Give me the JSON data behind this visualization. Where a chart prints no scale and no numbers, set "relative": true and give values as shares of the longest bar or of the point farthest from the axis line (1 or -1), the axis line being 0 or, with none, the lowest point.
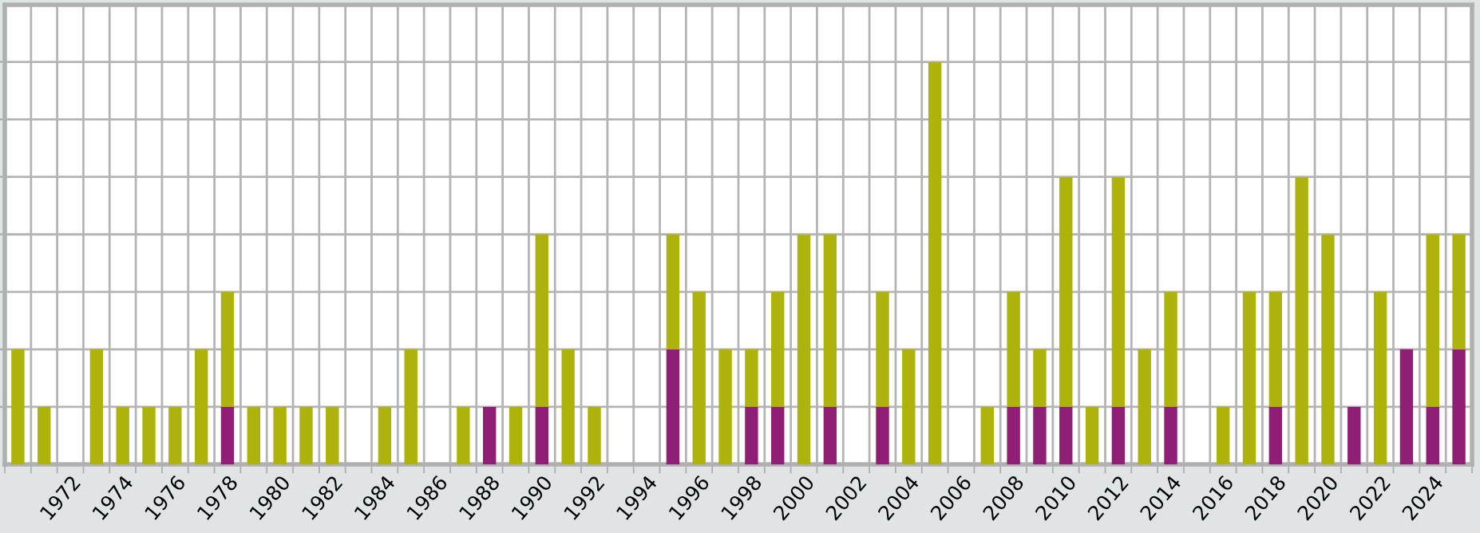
{
  "chart_data": {
    "type": "bar",
    "stacked": true,
    "relative": true,
    "grid": true,
    "categories": [
      null,
      null,
      "1972",
      null,
      "1974",
      null,
      "1976",
      null,
      "1978",
      null,
      "1980",
      null,
      "1982",
      null,
      "1984",
      null,
      "1986",
      null,
      "1988",
      null,
      "1990",
      null,
      "1992",
      null,
      "1994",
      null,
      "1996",
      null,
      "1998",
      null,
      "2000",
      null,
      "2002",
      null,
      "2004",
      null,
      "2006",
      null,
      "2008",
      null,
      "2010",
      null,
      "2012",
      null,
      "2014",
      null,
      "2016",
      null,
      "2018",
      null,
      "2020",
      null,
      "2022",
      null,
      "2024",
      null
    ],
    "series": [
      {
        "color": "#8f1f75",
        "values": [
          null,
          null,
          null,
          null,
          null,
          null,
          null,
          null,
          0.143,
          null,
          null,
          null,
          null,
          null,
          null,
          null,
          null,
          null,
          0.143,
          null,
          0.143,
          null,
          null,
          null,
          null,
          0.286,
          null,
          null,
          0.143,
          0.143,
          null,
          0.143,
          null,
          0.143,
          null,
          null,
          null,
          null,
          0.143,
          0.143,
          0.143,
          null,
          0.143,
          null,
          0.143,
          null,
          null,
          null,
          0.143,
          null,
          null,
          0.143,
          null,
          0.286,
          0.143,
          0.286
        ]
      },
      {
        "color": "#aeb30c",
        "values": [
          0.286,
          0.143,
          null,
          0.286,
          0.143,
          0.143,
          0.143,
          0.286,
          0.286,
          0.143,
          0.143,
          0.143,
          0.143,
          null,
          0.143,
          0.286,
          null,
          0.143,
          null,
          0.143,
          0.429,
          0.286,
          0.143,
          null,
          null,
          0.286,
          0.429,
          0.286,
          0.143,
          0.286,
          0.571,
          0.429,
          null,
          0.286,
          0.286,
          1,
          null,
          0.143,
          0.286,
          0.143,
          0.571,
          0.143,
          0.571,
          0.286,
          0.286,
          null,
          0.143,
          0.429,
          0.286,
          0.714,
          0.571,
          null,
          0.429,
          null,
          0.429,
          0.286
        ]
      }
    ]
  }
}
